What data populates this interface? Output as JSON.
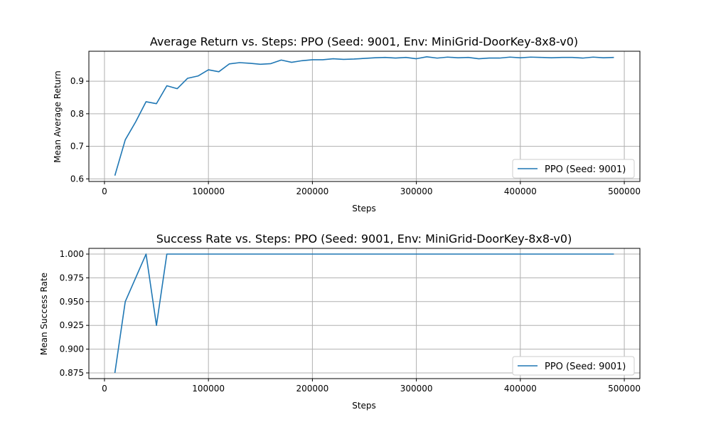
{
  "chart_data": [
    {
      "type": "line",
      "title": "Average Return vs. Steps: PPO (Seed: 9001, Env: MiniGrid-DoorKey-8x8-v0)",
      "xlabel": "Steps",
      "ylabel": "Mean Average Return",
      "xlim": [
        -15000,
        515000
      ],
      "ylim": [
        0.592,
        0.992
      ],
      "xticks": [
        0,
        100000,
        200000,
        300000,
        400000,
        500000
      ],
      "xtick_labels": [
        "0",
        "100000",
        "200000",
        "300000",
        "400000",
        "500000"
      ],
      "yticks": [
        0.6,
        0.7,
        0.8,
        0.9
      ],
      "ytick_labels": [
        "0.6",
        "0.7",
        "0.8",
        "0.9"
      ],
      "grid": true,
      "legend_position": "lower-right",
      "series": [
        {
          "name": "PPO (Seed: 9001)",
          "color": "#1f77b4",
          "x": [
            10000,
            20000,
            30000,
            40000,
            50000,
            60000,
            70000,
            80000,
            90000,
            100000,
            110000,
            120000,
            130000,
            140000,
            150000,
            160000,
            170000,
            180000,
            190000,
            200000,
            210000,
            220000,
            230000,
            240000,
            250000,
            260000,
            270000,
            280000,
            290000,
            300000,
            310000,
            320000,
            330000,
            340000,
            350000,
            360000,
            370000,
            380000,
            390000,
            400000,
            410000,
            420000,
            430000,
            440000,
            450000,
            460000,
            470000,
            480000,
            490000
          ],
          "y": [
            0.61,
            0.72,
            0.775,
            0.837,
            0.831,
            0.886,
            0.877,
            0.909,
            0.916,
            0.935,
            0.929,
            0.953,
            0.957,
            0.955,
            0.952,
            0.954,
            0.965,
            0.958,
            0.963,
            0.966,
            0.966,
            0.969,
            0.967,
            0.968,
            0.97,
            0.972,
            0.973,
            0.971,
            0.973,
            0.969,
            0.975,
            0.971,
            0.974,
            0.972,
            0.973,
            0.969,
            0.971,
            0.971,
            0.974,
            0.972,
            0.974,
            0.973,
            0.972,
            0.973,
            0.973,
            0.971,
            0.974,
            0.972,
            0.973
          ]
        }
      ]
    },
    {
      "type": "line",
      "title": "Success Rate vs. Steps: PPO (Seed: 9001, Env: MiniGrid-DoorKey-8x8-v0)",
      "xlabel": "Steps",
      "ylabel": "Mean Success Rate",
      "xlim": [
        -15000,
        515000
      ],
      "ylim": [
        0.869,
        1.006
      ],
      "xticks": [
        0,
        100000,
        200000,
        300000,
        400000,
        500000
      ],
      "xtick_labels": [
        "0",
        "100000",
        "200000",
        "300000",
        "400000",
        "500000"
      ],
      "yticks": [
        0.875,
        0.9,
        0.925,
        0.95,
        0.975,
        1.0
      ],
      "ytick_labels": [
        "0.875",
        "0.900",
        "0.925",
        "0.950",
        "0.975",
        "1.000"
      ],
      "grid": true,
      "legend_position": "lower-right",
      "series": [
        {
          "name": "PPO (Seed: 9001)",
          "color": "#1f77b4",
          "x": [
            10000,
            20000,
            30000,
            40000,
            50000,
            60000,
            70000,
            80000,
            90000,
            100000,
            110000,
            120000,
            130000,
            140000,
            150000,
            160000,
            170000,
            180000,
            190000,
            200000,
            210000,
            220000,
            230000,
            240000,
            250000,
            260000,
            270000,
            280000,
            290000,
            300000,
            310000,
            320000,
            330000,
            340000,
            350000,
            360000,
            370000,
            380000,
            390000,
            400000,
            410000,
            420000,
            430000,
            440000,
            450000,
            460000,
            470000,
            480000,
            490000
          ],
          "y": [
            0.875,
            0.95,
            0.975,
            1.0,
            0.925,
            1.0,
            1.0,
            1.0,
            1.0,
            1.0,
            1.0,
            1.0,
            1.0,
            1.0,
            1.0,
            1.0,
            1.0,
            1.0,
            1.0,
            1.0,
            1.0,
            1.0,
            1.0,
            1.0,
            1.0,
            1.0,
            1.0,
            1.0,
            1.0,
            1.0,
            1.0,
            1.0,
            1.0,
            1.0,
            1.0,
            1.0,
            1.0,
            1.0,
            1.0,
            1.0,
            1.0,
            1.0,
            1.0,
            1.0,
            1.0,
            1.0,
            1.0,
            1.0,
            1.0
          ]
        }
      ]
    }
  ]
}
